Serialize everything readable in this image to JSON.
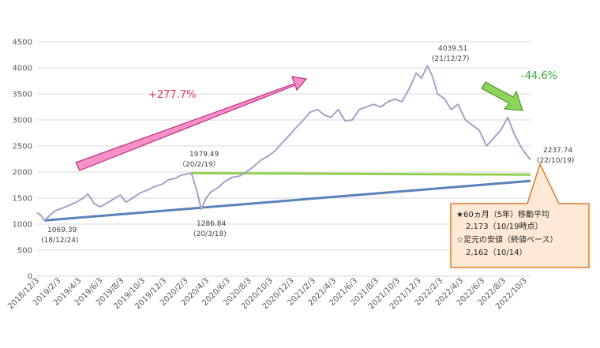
{
  "chart_data": {
    "type": "line",
    "title": "",
    "xlabel": "",
    "ylabel": "",
    "ylim": [
      0,
      4500
    ],
    "grid": true,
    "y_ticks": [
      0,
      500,
      1000,
      1500,
      2000,
      2500,
      3000,
      3500,
      4000,
      4500
    ],
    "x_ticks": [
      "2018/12/3",
      "2019/2/3",
      "2019/4/3",
      "2019/6/3",
      "2019/8/3",
      "2019/10/3",
      "2019/12/3",
      "2020/2/3",
      "2020/4/3",
      "2020/6/3",
      "2020/8/3",
      "2020/10/3",
      "2020/12/3",
      "2021/2/3",
      "2021/4/3",
      "2021/6/3",
      "2021/8/3",
      "2021/10/3",
      "2021/12/3",
      "2022/2/3",
      "2022/4/3",
      "2022/6/3",
      "2022/8/3",
      "2022/10/3"
    ],
    "series": [
      {
        "color": "#a8a0c8",
        "points": [
          [
            "2018-12-03",
            1220
          ],
          [
            "2018-12-14",
            1170
          ],
          [
            "2018-12-24",
            1069.39
          ],
          [
            "2019-01-10",
            1180
          ],
          [
            "2019-01-25",
            1260
          ],
          [
            "2019-02-15",
            1310
          ],
          [
            "2019-03-05",
            1360
          ],
          [
            "2019-03-25",
            1420
          ],
          [
            "2019-04-15",
            1500
          ],
          [
            "2019-04-28",
            1580
          ],
          [
            "2019-05-15",
            1400
          ],
          [
            "2019-06-03",
            1330
          ],
          [
            "2019-06-20",
            1400
          ],
          [
            "2019-07-10",
            1480
          ],
          [
            "2019-07-30",
            1560
          ],
          [
            "2019-08-15",
            1420
          ],
          [
            "2019-09-03",
            1500
          ],
          [
            "2019-09-25",
            1600
          ],
          [
            "2019-10-15",
            1650
          ],
          [
            "2019-11-05",
            1720
          ],
          [
            "2019-11-25",
            1760
          ],
          [
            "2019-12-15",
            1850
          ],
          [
            "2020-01-05",
            1880
          ],
          [
            "2020-01-20",
            1940
          ],
          [
            "2020-02-19",
            1979.49
          ],
          [
            "2020-03-05",
            1650
          ],
          [
            "2020-03-18",
            1286.84
          ],
          [
            "2020-04-01",
            1500
          ],
          [
            "2020-04-15",
            1620
          ],
          [
            "2020-05-05",
            1700
          ],
          [
            "2020-05-25",
            1820
          ],
          [
            "2020-06-15",
            1900
          ],
          [
            "2020-07-05",
            1920
          ],
          [
            "2020-07-25",
            2000
          ],
          [
            "2020-08-15",
            2100
          ],
          [
            "2020-09-05",
            2230
          ],
          [
            "2020-09-25",
            2300
          ],
          [
            "2020-10-15",
            2400
          ],
          [
            "2020-11-05",
            2560
          ],
          [
            "2020-11-25",
            2700
          ],
          [
            "2020-12-15",
            2850
          ],
          [
            "2021-01-05",
            3000
          ],
          [
            "2021-01-25",
            3150
          ],
          [
            "2021-02-15",
            3200
          ],
          [
            "2021-03-05",
            3100
          ],
          [
            "2021-03-25",
            3050
          ],
          [
            "2021-04-15",
            3200
          ],
          [
            "2021-05-05",
            2980
          ],
          [
            "2021-05-25",
            3000
          ],
          [
            "2021-06-15",
            3200
          ],
          [
            "2021-07-05",
            3250
          ],
          [
            "2021-07-25",
            3300
          ],
          [
            "2021-08-15",
            3250
          ],
          [
            "2021-09-05",
            3350
          ],
          [
            "2021-09-25",
            3400
          ],
          [
            "2021-10-15",
            3350
          ],
          [
            "2021-11-05",
            3600
          ],
          [
            "2021-11-25",
            3900
          ],
          [
            "2021-12-10",
            3800
          ],
          [
            "2021-12-27",
            4039.51
          ],
          [
            "2022-01-10",
            3850
          ],
          [
            "2022-01-25",
            3500
          ],
          [
            "2022-02-15",
            3400
          ],
          [
            "2022-03-05",
            3200
          ],
          [
            "2022-03-25",
            3300
          ],
          [
            "2022-04-15",
            3000
          ],
          [
            "2022-05-05",
            2900
          ],
          [
            "2022-05-25",
            2800
          ],
          [
            "2022-06-15",
            2500
          ],
          [
            "2022-07-05",
            2650
          ],
          [
            "2022-07-25",
            2800
          ],
          [
            "2022-08-15",
            3050
          ],
          [
            "2022-09-01",
            2750
          ],
          [
            "2022-09-20",
            2500
          ],
          [
            "2022-10-05",
            2350
          ],
          [
            "2022-10-19",
            2237.74
          ]
        ]
      },
      {
        "color": "#5b82b8",
        "points": [
          [
            "2018-12-24",
            1069.39
          ],
          [
            "2022-10-19",
            1830
          ]
        ]
      },
      {
        "color": "#92d050",
        "points": [
          [
            "2020-02-19",
            1979.49
          ],
          [
            "2022-10-19",
            1950
          ]
        ]
      }
    ],
    "annotations": [
      {
        "value": "1069.39",
        "date": "(18/12/24)"
      },
      {
        "value": "1979.49",
        "date": "（20/2/19）"
      },
      {
        "value": "1286.84",
        "date": "(20/3/18)"
      },
      {
        "value": "4039.51",
        "date": "(21/12/27)"
      },
      {
        "value": "2237.74",
        "date": "(22/10/19)"
      }
    ],
    "rise_label": "+277.7%",
    "fall_label": "-44.6%",
    "callout": {
      "line1": "★60ヵ月（5年）移動平均",
      "line2": "2,173（10/19時点）",
      "line3": "☆足元の安値（終値ベース）",
      "line4": "2,162（10/14）"
    },
    "colors": {
      "rise": "#e8375a",
      "fall": "#3aab3a",
      "rise_arrow": "#f78fc8",
      "fall_arrow": "#8fd45a",
      "callout_fill": "#fde9d6",
      "callout_border": "#e07a2a"
    }
  }
}
